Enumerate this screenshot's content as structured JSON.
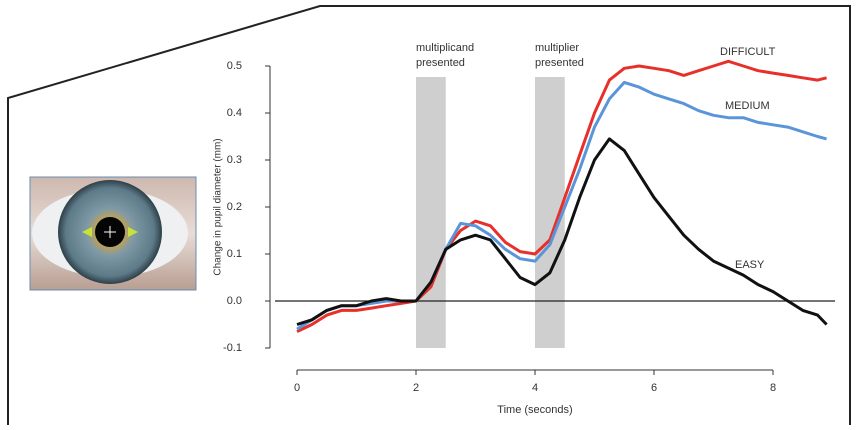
{
  "chart_data": {
    "type": "line",
    "x_label": "Time (seconds)",
    "y_label": "Change in pupil diameter (mm)",
    "x": [
      0,
      0.25,
      0.5,
      0.75,
      1,
      1.25,
      1.5,
      1.75,
      2,
      2.25,
      2.5,
      2.75,
      3,
      3.25,
      3.5,
      3.75,
      4,
      4.25,
      4.5,
      4.75,
      5,
      5.25,
      5.5,
      5.75,
      6,
      6.25,
      6.5,
      6.75,
      7,
      7.25,
      7.5,
      7.75,
      8,
      8.25,
      8.5,
      8.75,
      8.9
    ],
    "series": [
      {
        "name": "DIFFICULT",
        "color": "#e8302a",
        "values": [
          -0.065,
          -0.05,
          -0.03,
          -0.02,
          -0.02,
          -0.015,
          -0.01,
          -0.005,
          0,
          0.03,
          0.11,
          0.15,
          0.17,
          0.16,
          0.125,
          0.105,
          0.1,
          0.13,
          0.22,
          0.31,
          0.4,
          0.47,
          0.495,
          0.5,
          0.495,
          0.49,
          0.48,
          0.49,
          0.5,
          0.51,
          0.5,
          0.49,
          0.485,
          0.48,
          0.475,
          0.47,
          0.475
        ]
      },
      {
        "name": "MEDIUM",
        "color": "#5b95d9",
        "values": [
          -0.06,
          -0.04,
          -0.02,
          -0.01,
          -0.01,
          -0.005,
          0,
          0,
          0,
          0.04,
          0.11,
          0.165,
          0.16,
          0.14,
          0.11,
          0.09,
          0.085,
          0.12,
          0.2,
          0.28,
          0.37,
          0.43,
          0.465,
          0.455,
          0.44,
          0.43,
          0.42,
          0.405,
          0.395,
          0.39,
          0.39,
          0.38,
          0.375,
          0.37,
          0.36,
          0.35,
          0.345
        ]
      },
      {
        "name": "EASY",
        "color": "#111111",
        "values": [
          -0.05,
          -0.04,
          -0.02,
          -0.01,
          -0.01,
          0,
          0.005,
          0,
          0,
          0.04,
          0.11,
          0.13,
          0.14,
          0.13,
          0.09,
          0.05,
          0.035,
          0.06,
          0.13,
          0.22,
          0.3,
          0.345,
          0.32,
          0.27,
          0.22,
          0.18,
          0.14,
          0.11,
          0.085,
          0.07,
          0.055,
          0.035,
          0.02,
          0,
          -0.02,
          -0.03,
          -0.05
        ]
      }
    ],
    "shaded_regions": [
      {
        "x": [
          2,
          2.5
        ],
        "label": [
          "multiplicand",
          "presented"
        ]
      },
      {
        "x": [
          4,
          4.5
        ],
        "label": [
          "multiplier",
          "presented"
        ]
      }
    ],
    "xlim": [
      0,
      9
    ],
    "ylim": [
      -0.1,
      0.5
    ],
    "xticks": [
      0,
      2,
      4,
      6,
      8
    ],
    "yticks": [
      -0.1,
      {
        "value": 0,
        "label": "0.0"
      },
      0.1,
      0.2,
      0.3,
      0.4,
      0.5
    ],
    "zero_line": true
  }
}
